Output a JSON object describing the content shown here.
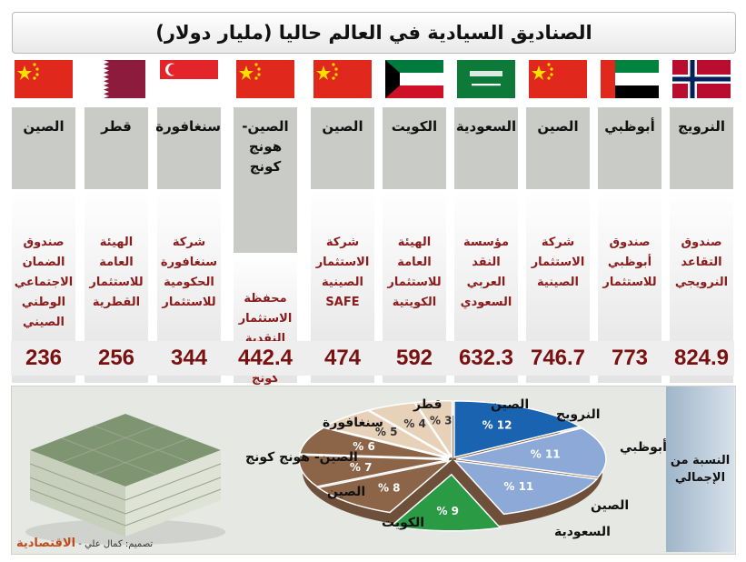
{
  "title": "الصناديق السيادية في العالم حاليا (مليار دولار)",
  "funds": [
    {
      "country": "النرويج",
      "fund": "صندوق التقاعد النرويجي",
      "value": "824.9",
      "flag": "norway"
    },
    {
      "country": "أبوظبي",
      "fund": "صندوق أبوظبي للاستثمار",
      "value": "773",
      "flag": "uae"
    },
    {
      "country": "الصين",
      "fund": "شركة الاستثمار الصينية",
      "value": "746.7",
      "flag": "china"
    },
    {
      "country": "السعودية",
      "fund": "مؤسسة النقد العربي السعودي",
      "value": "632.3",
      "flag": "saudi"
    },
    {
      "country": "الكويت",
      "fund": "الهيئة العامة للاستثمار الكويتية",
      "value": "592",
      "flag": "kuwait"
    },
    {
      "country": "الصين",
      "fund": "شركة الاستثمار الصينية SAFE",
      "value": "474",
      "flag": "china"
    },
    {
      "country": "الصين- هونج كونج",
      "fund": "محفظة الاستثمار النقدية لهونج كونج",
      "value": "442.4",
      "flag": "china"
    },
    {
      "country": "سنغافورة",
      "fund": "شركة سنغافورة الحكومية للاستثمار",
      "value": "344",
      "flag": "singapore"
    },
    {
      "country": "قطر",
      "fund": "الهيئة العامة للاستثمار القطرية",
      "value": "256",
      "flag": "qatar"
    },
    {
      "country": "الصين",
      "fund": "صندوق الضمان الاجتماعي الوطني الصيني",
      "value": "236",
      "flag": "china"
    }
  ],
  "share_label": "النسبة من الإجمالي",
  "credit": {
    "text": "تصميم: كمال علي -",
    "brand": "الاقتصادية"
  },
  "colors": {
    "value_text": "#7a1010",
    "desc_text": "#8a1c1c",
    "pie_blue": "#1a63b0",
    "pie_lightblue": "#8da9d7",
    "pie_green": "#2a9a45",
    "pie_brown": "#8c6447",
    "pie_tan": "#e8d1b9"
  },
  "chart_data": {
    "type": "pie",
    "title": "النسبة من الإجمالي",
    "unit": "%",
    "slices": [
      {
        "label": "النرويج",
        "value": 12
      },
      {
        "label": "أبوظبي",
        "value": 11
      },
      {
        "label": "الصين",
        "value": 11
      },
      {
        "label": "السعودية",
        "value": 9
      },
      {
        "label": "الكويت",
        "value": 8
      },
      {
        "label": "الصين",
        "value": 7
      },
      {
        "label": "الصين- هونج كونج",
        "value": 6
      },
      {
        "label": "سنغافورة",
        "value": 5
      },
      {
        "label": "قطر",
        "value": 4
      },
      {
        "label": "الصين",
        "value": 3
      }
    ]
  }
}
